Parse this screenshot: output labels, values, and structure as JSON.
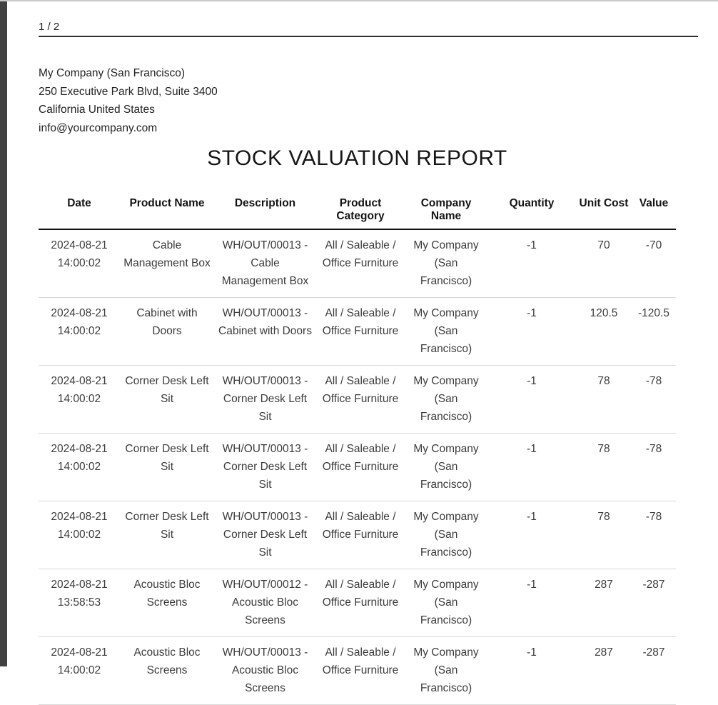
{
  "page": {
    "indicator": "1 / 2"
  },
  "header": {
    "company_name": "My Company (San Francisco)",
    "address_line": "250 Executive Park Blvd, Suite 3400",
    "region_line": "California United States",
    "email": "info@yourcompany.com"
  },
  "report": {
    "title": "STOCK VALUATION REPORT"
  },
  "table": {
    "columns": [
      "Date",
      "Product Name",
      "Description",
      "Product Category",
      "Company Name",
      "Quantity",
      "Unit Cost",
      "Value"
    ],
    "rows": [
      [
        "2024-08-21 14:00:02",
        "Cable Management Box",
        "WH/OUT/00013 - Cable Management Box",
        "All / Saleable / Office Furniture",
        "My Company (San Francisco)",
        "-1",
        "70",
        "-70"
      ],
      [
        "2024-08-21 14:00:02",
        "Cabinet with Doors",
        "WH/OUT/00013 - Cabinet with Doors",
        "All / Saleable / Office Furniture",
        "My Company (San Francisco)",
        "-1",
        "120.5",
        "-120.5"
      ],
      [
        "2024-08-21 14:00:02",
        "Corner Desk Left Sit",
        "WH/OUT/00013 - Corner Desk Left Sit",
        "All / Saleable / Office Furniture",
        "My Company (San Francisco)",
        "-1",
        "78",
        "-78"
      ],
      [
        "2024-08-21 14:00:02",
        "Corner Desk Left Sit",
        "WH/OUT/00013 - Corner Desk Left Sit",
        "All / Saleable / Office Furniture",
        "My Company (San Francisco)",
        "-1",
        "78",
        "-78"
      ],
      [
        "2024-08-21 14:00:02",
        "Corner Desk Left Sit",
        "WH/OUT/00013 - Corner Desk Left Sit",
        "All / Saleable / Office Furniture",
        "My Company (San Francisco)",
        "-1",
        "78",
        "-78"
      ],
      [
        "2024-08-21 13:58:53",
        "Acoustic Bloc Screens",
        "WH/OUT/00012 - Acoustic Bloc Screens",
        "All / Saleable / Office Furniture",
        "My Company (San Francisco)",
        "-1",
        "287",
        "-287"
      ],
      [
        "2024-08-21 14:00:02",
        "Acoustic Bloc Screens",
        "WH/OUT/00013 - Acoustic Bloc Screens",
        "All / Saleable / Office Furniture",
        "My Company (San Francisco)",
        "-1",
        "287",
        "-287"
      ]
    ]
  }
}
